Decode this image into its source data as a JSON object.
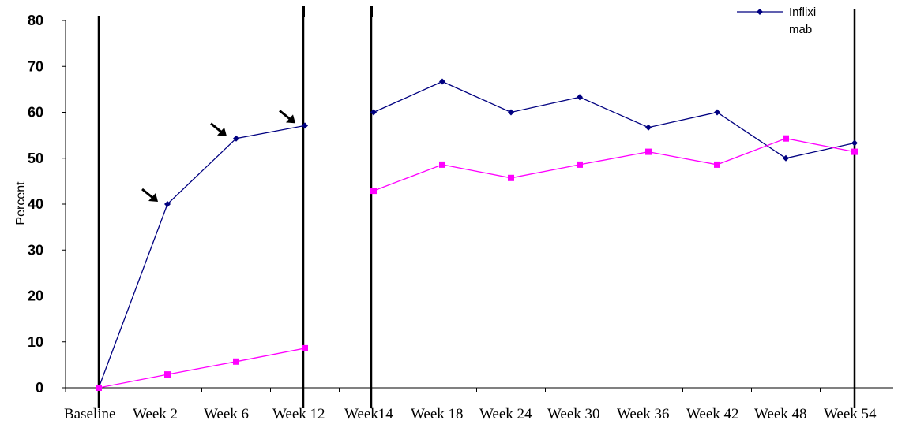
{
  "chart_data": {
    "type": "line",
    "categories": [
      "Baseline",
      "Week 2",
      "Week 6",
      "Week 12",
      "Week14",
      "Week 18",
      "Week 24",
      "Week 30",
      "Week 36",
      "Week 42",
      "Week 48",
      "Week 54"
    ],
    "title": "",
    "xlabel": "",
    "ylabel": "Percent",
    "ylim": [
      0,
      80
    ],
    "yticks": [
      "0",
      "10",
      "20",
      "30",
      "40",
      "50",
      "60",
      "70",
      "80"
    ],
    "grid": false,
    "legend": {
      "placement": "top-right",
      "entries": [
        {
          "lines": [
            "Inflixi",
            "mab"
          ],
          "color": "#000080"
        }
      ]
    },
    "series": [
      {
        "name": "Infliximab",
        "color": "#000080",
        "marker": "diamond",
        "segments": [
          {
            "x": [
              0,
              1,
              2,
              3
            ],
            "y": [
              0,
              40,
              54.3,
              57.1
            ]
          },
          {
            "x": [
              4,
              5,
              6,
              7,
              8,
              9,
              10,
              11
            ],
            "y": [
              60,
              66.7,
              60,
              63.3,
              56.7,
              60,
              50,
              53.3
            ]
          }
        ]
      },
      {
        "color": "#FF00FF",
        "marker": "square",
        "segments": [
          {
            "x": [
              0,
              1,
              2,
              3
            ],
            "y": [
              0,
              2.9,
              5.7,
              8.6
            ]
          },
          {
            "x": [
              4,
              5,
              6,
              7,
              8,
              9,
              10,
              11
            ],
            "y": [
              42.9,
              48.6,
              45.7,
              48.6,
              51.4,
              48.6,
              54.3,
              51.4
            ]
          }
        ]
      }
    ],
    "annotations": [
      {
        "type": "arrow",
        "target_series": "Infliximab",
        "target_x": 1
      },
      {
        "type": "arrow",
        "target_series": "Infliximab",
        "target_x": 2
      },
      {
        "type": "arrow",
        "target_series": "Infliximab",
        "target_x": 3
      }
    ]
  }
}
